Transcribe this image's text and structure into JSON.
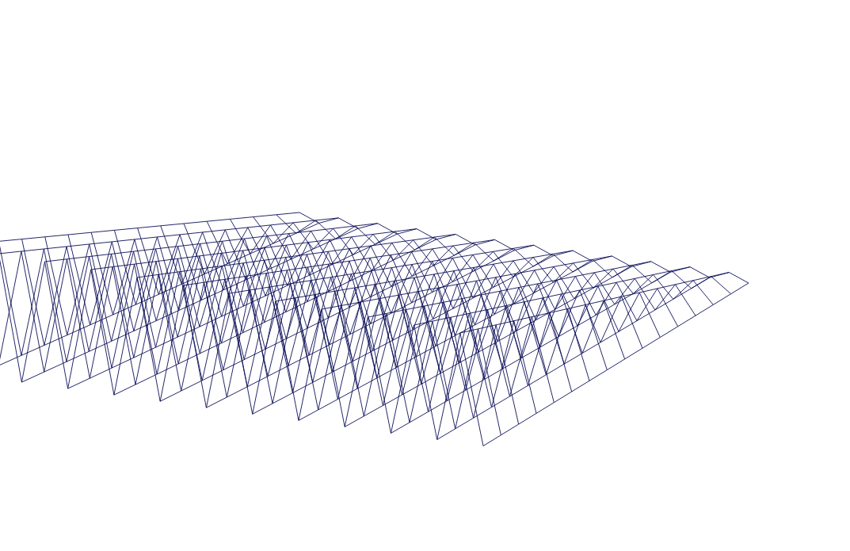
{
  "chart_data": {
    "type": "wireframe",
    "x": [
      0,
      1,
      2,
      3,
      4,
      5,
      6,
      7,
      8,
      9,
      10,
      11,
      12,
      13,
      14,
      15,
      16,
      17,
      18,
      19,
      20,
      21,
      22,
      23
    ],
    "y": [
      0,
      1,
      2,
      3,
      4,
      5,
      6,
      7,
      8,
      9,
      10,
      11,
      12,
      13,
      14,
      15
    ],
    "z": [
      [
        0,
        -1,
        0,
        -1,
        0,
        -1,
        0,
        -1,
        0,
        -1,
        0,
        -1,
        0,
        -1,
        0,
        -1,
        0,
        -1,
        0,
        -1,
        0,
        -1,
        0,
        -1
      ],
      [
        0,
        -1,
        0,
        -1,
        0,
        -1,
        0,
        -1,
        0,
        -1,
        0,
        -1,
        0,
        -1,
        0,
        -1,
        0,
        -1,
        0,
        -1,
        0,
        -1,
        0,
        -1
      ],
      [
        0,
        -1,
        0,
        -1,
        0,
        -1,
        0,
        -1,
        0,
        -1,
        0,
        -1,
        0,
        -1,
        0,
        -1,
        0,
        -1,
        0,
        -1,
        0,
        -1,
        0,
        -1
      ],
      [
        0,
        -1,
        0,
        -1,
        0,
        -1,
        0,
        -1,
        0,
        -1,
        0,
        -1,
        0,
        -1,
        0,
        -1,
        0,
        -1,
        0,
        -1,
        0,
        -1,
        0,
        -1
      ],
      [
        0,
        -1,
        0,
        -1,
        0,
        -1,
        0,
        -1,
        0,
        -1,
        0,
        -1,
        0,
        -1,
        0,
        -1,
        0,
        -1,
        0,
        -1,
        0,
        -1,
        0,
        -1
      ],
      [
        0,
        -1,
        0,
        -1,
        0,
        -1,
        0,
        -1,
        0,
        -1,
        0,
        -1,
        0,
        -1,
        0,
        -1,
        0,
        -1,
        0,
        -1,
        0,
        -1,
        0,
        -1
      ],
      [
        0,
        -1,
        0,
        -1,
        0,
        -1,
        0,
        -1,
        0,
        -1,
        0,
        -1,
        0,
        -1,
        0,
        -1,
        0,
        -1,
        0,
        -1,
        0,
        -1,
        0,
        -1
      ],
      [
        0,
        -1,
        0,
        -1,
        0,
        -1,
        0,
        -1,
        0,
        -1,
        0,
        -1,
        0,
        -1,
        0,
        -1,
        0,
        -1,
        0,
        -1,
        0,
        -1,
        0,
        -1
      ],
      [
        0,
        -1,
        0,
        -1,
        0,
        -1,
        0,
        -1,
        0,
        -1,
        0,
        -1,
        0,
        -1,
        0,
        -1,
        0,
        -1,
        0,
        -1,
        0,
        -1,
        0,
        -1
      ],
      [
        0,
        -1,
        0,
        -1,
        0,
        -1,
        0,
        -1,
        0,
        -1,
        0,
        -1,
        0,
        -1,
        0,
        -1,
        0,
        -1,
        0,
        -1,
        0,
        -1,
        0,
        -1
      ],
      [
        0,
        -1,
        0,
        -1,
        0,
        -1,
        0,
        -1,
        0,
        -1,
        0,
        -1,
        0,
        -1,
        0,
        -1,
        0,
        -1,
        0,
        -1,
        0,
        -1,
        0,
        -1
      ],
      [
        0,
        -1,
        0,
        -1,
        0,
        -1,
        0,
        -1,
        0,
        -1,
        0,
        -1,
        0,
        -1,
        0,
        -1,
        0,
        -1,
        0,
        -1,
        0,
        -1,
        0,
        -1
      ],
      [
        0,
        -1,
        0,
        -1,
        0,
        -1,
        0,
        -1,
        0,
        -1,
        0,
        -1,
        0,
        -1,
        0,
        -1,
        0,
        -1,
        0,
        -1,
        0,
        -1,
        0,
        -1
      ],
      [
        0,
        -1,
        0,
        -1,
        0,
        -1,
        0,
        -1,
        0,
        -1,
        0,
        -1,
        0,
        -1,
        0,
        -1,
        0,
        -1,
        0,
        -1,
        0,
        -1,
        0,
        -1
      ],
      [
        0,
        -1,
        0,
        -1,
        0,
        -1,
        0,
        -1,
        0,
        -1,
        0,
        -1,
        0,
        -1,
        0,
        -1,
        0,
        -1,
        0,
        -1,
        0,
        -1,
        0,
        -1
      ],
      [
        0,
        -1,
        0,
        -1,
        0,
        -1,
        0,
        -1,
        0,
        -1,
        0,
        -1,
        0,
        -1,
        0,
        -1,
        0,
        -1,
        0,
        -1,
        0,
        -1,
        0,
        -1
      ]
    ],
    "xlim": [
      0,
      23
    ],
    "ylim": [
      0,
      15
    ],
    "zlim": [
      -1,
      0
    ],
    "color": "#0b0f57",
    "grid": false,
    "tick_labels": false
  }
}
